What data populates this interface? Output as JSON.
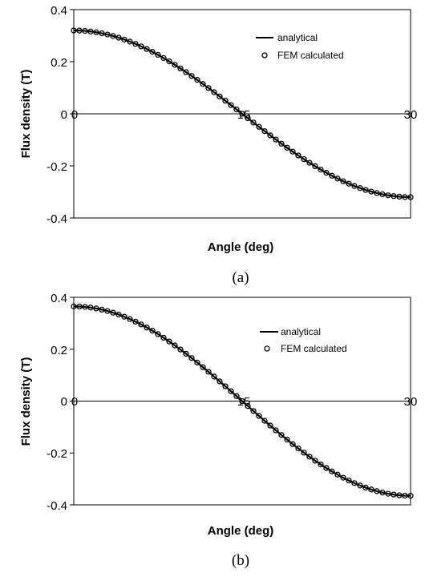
{
  "chart_data": [
    {
      "type": "line",
      "panel_label": "(a)",
      "xlabel": "Angle (deg)",
      "ylabel": "Flux density (T)",
      "xlim": [
        0,
        30
      ],
      "ylim": [
        -0.4,
        0.4
      ],
      "x_ticks": [
        "0",
        "15",
        "30"
      ],
      "y_ticks": [
        "0.4",
        "0.2",
        "0",
        "-0.2",
        "-0.4"
      ],
      "grid": false,
      "zero_line": true,
      "legend_position": "top-right",
      "series": [
        {
          "name": "analytical",
          "style": "line",
          "amplitude": 0.32,
          "x_step": 0.5
        },
        {
          "name": "FEM calculated",
          "style": "hollow-circle-markers",
          "amplitude": 0.32,
          "x_step": 0.5
        }
      ]
    },
    {
      "type": "line",
      "panel_label": "(b)",
      "xlabel": "Angle (deg)",
      "ylabel": "Flux density (T)",
      "xlim": [
        0,
        30
      ],
      "ylim": [
        -0.4,
        0.4
      ],
      "x_ticks": [
        "0",
        "15",
        "30"
      ],
      "y_ticks": [
        "0.4",
        "0.2",
        "0",
        "-0.2",
        "-0.4"
      ],
      "grid": false,
      "zero_line": true,
      "legend_position": "top-right",
      "series": [
        {
          "name": "analytical",
          "style": "line",
          "amplitude": 0.365,
          "x_step": 0.5
        },
        {
          "name": "FEM calculated",
          "style": "hollow-circle-markers",
          "amplitude": 0.365,
          "x_step": 0.5
        }
      ]
    }
  ]
}
